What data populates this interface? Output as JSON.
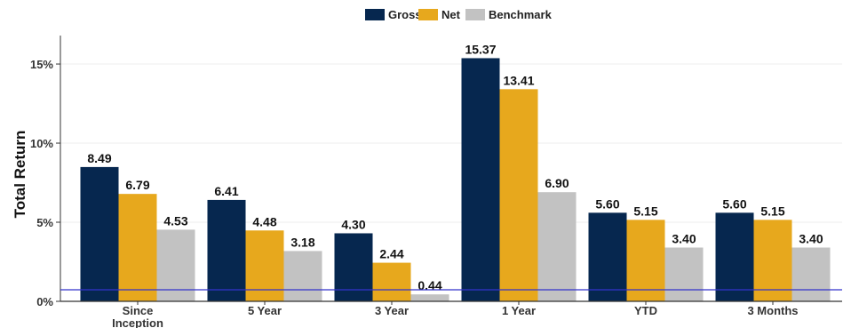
{
  "chart_data": {
    "type": "bar",
    "title": "",
    "xlabel": "",
    "ylabel": "Total Return",
    "categories": [
      "Since Inception",
      "5 Year",
      "3 Year",
      "1 Year",
      "YTD",
      "3 Months"
    ],
    "category_lines": [
      [
        "Since",
        "Inception"
      ],
      [
        "5 Year"
      ],
      [
        "3 Year"
      ],
      [
        "1 Year"
      ],
      [
        "YTD"
      ],
      [
        "3 Months"
      ]
    ],
    "series": [
      {
        "name": "Gross",
        "color": "#06274f",
        "values": [
          8.49,
          6.41,
          4.3,
          15.37,
          5.6,
          5.6
        ],
        "labels": [
          "8.49",
          "6.41",
          "4.30",
          "15.37",
          "5.60",
          "5.60"
        ]
      },
      {
        "name": "Net",
        "color": "#e7a81d",
        "values": [
          6.79,
          4.48,
          2.44,
          13.41,
          5.15,
          5.15
        ],
        "labels": [
          "6.79",
          "4.48",
          "2.44",
          "13.41",
          "5.15",
          "5.15"
        ]
      },
      {
        "name": "Benchmark",
        "color": "#c2c2c2",
        "values": [
          4.53,
          3.18,
          0.44,
          6.9,
          3.4,
          3.4
        ],
        "labels": [
          "4.53",
          "3.18",
          "0.44",
          "6.90",
          "3.40",
          "3.40"
        ]
      }
    ],
    "ylim": [
      0,
      16.8
    ],
    "yticks": [
      0,
      5,
      10,
      15
    ],
    "ytick_labels": [
      "0%",
      "5%",
      "10%",
      "15%"
    ],
    "grid": true,
    "legend_position": "top-center",
    "zero_line_color": "#3333cc"
  }
}
